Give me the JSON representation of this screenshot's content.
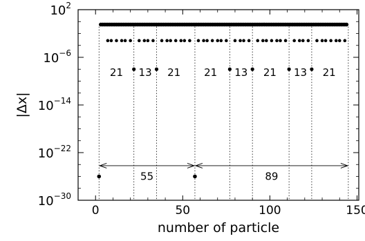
{
  "chart_data": {
    "type": "scatter",
    "title": "",
    "xlabel": "number of particle",
    "ylabel": "|Δx|",
    "xlim": [
      -10,
      151
    ],
    "ylog_exp_lim": [
      -30,
      2
    ],
    "x_ticks": [
      0,
      50,
      100,
      150
    ],
    "x_tick_labels": [
      "0",
      "50",
      "100",
      "150"
    ],
    "y_ticks_exp": [
      -30,
      -22,
      -14,
      -6,
      2
    ],
    "y_tick_labels": [
      {
        "base": "10",
        "exp": "−30"
      },
      {
        "base": "10",
        "exp": "−22"
      },
      {
        "base": "10",
        "exp": "−14"
      },
      {
        "base": "10",
        "exp": "−6"
      },
      {
        "base": "10",
        "exp": "2"
      }
    ],
    "marker_color": "#000000",
    "points_exp": {
      "top_level": -0.5,
      "top_x_range": [
        3,
        144
      ],
      "mid_level": -3.2,
      "mid_x": [
        7,
        9,
        12,
        15,
        17,
        20,
        25,
        28,
        30,
        33,
        38,
        41,
        43,
        46,
        49,
        51,
        54,
        59,
        62,
        64,
        67,
        70,
        72,
        75,
        80,
        83,
        85,
        88,
        93,
        96,
        98,
        101,
        104,
        106,
        109,
        114,
        117,
        119,
        122,
        127,
        130,
        132,
        135,
        138,
        140,
        143
      ],
      "low_level": -8,
      "low_x": [
        22,
        35,
        77,
        90,
        111,
        124
      ],
      "bottom_level": -26,
      "bottom_x": [
        2,
        57
      ]
    },
    "annotations": {
      "segment_labels": [
        {
          "text": "21",
          "x": 12
        },
        {
          "text": "13",
          "x": 28.5
        },
        {
          "text": "21",
          "x": 45
        },
        {
          "text": "21",
          "x": 66
        },
        {
          "text": "13",
          "x": 83.5
        },
        {
          "text": "21",
          "x": 100
        },
        {
          "text": "13",
          "x": 117.5
        },
        {
          "text": "21",
          "x": 134
        }
      ],
      "segment_label_level": -8.3,
      "dotted_lines_x": [
        2,
        22,
        35,
        57,
        77,
        90,
        111,
        124,
        145
      ],
      "arrows": [
        {
          "from": 2,
          "to": 57,
          "label": "55"
        },
        {
          "from": 57,
          "to": 145,
          "label": "89"
        }
      ],
      "arrow_level": -24.2,
      "arrow_label_level": -25.9
    }
  }
}
